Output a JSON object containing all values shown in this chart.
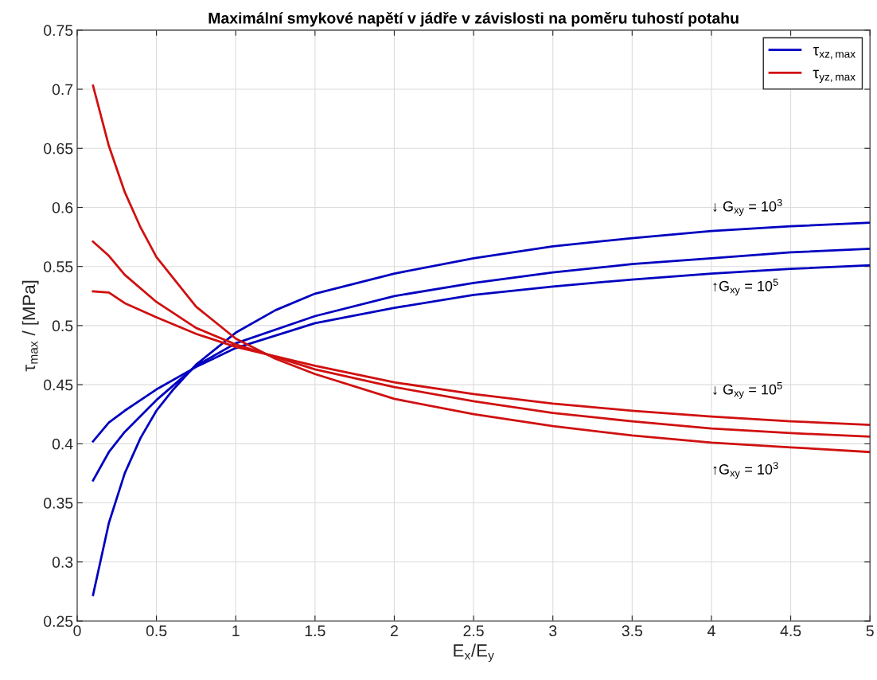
{
  "chart_data": {
    "type": "line",
    "title": "Maximální smykové napětí v jádře v závislosti na poměru tuhostí potahu",
    "xlabel": "E$_{x}$/E$_{y}$",
    "ylabel": "τ$_{max}$ / [MPa]",
    "xlim": [
      0,
      5
    ],
    "xticks": [
      0,
      0.5,
      1,
      1.5,
      2,
      2.5,
      3,
      3.5,
      4,
      4.5,
      5
    ],
    "ylim": [
      0.25,
      0.75
    ],
    "yticks": [
      0.25,
      0.3,
      0.35,
      0.4,
      0.45,
      0.5,
      0.55,
      0.6,
      0.65,
      0.7,
      0.75
    ],
    "grid": true,
    "legend": "top right",
    "line_style": "solid",
    "marker": "none",
    "series": [
      {
        "name": "τ$_{xz,max}$",
        "color": "#0000c0",
        "x": [
          0.1,
          0.2,
          0.3,
          0.4,
          0.5,
          0.6,
          0.75,
          1.0,
          1.25,
          1.5,
          2.0,
          2.5,
          3.0,
          3.5,
          4.0,
          4.5,
          5.0
        ],
        "values": [
          0.272,
          0.333,
          0.375,
          0.405,
          0.428,
          0.445,
          0.467,
          0.494,
          0.513,
          0.527,
          0.544,
          0.557,
          0.567,
          0.574,
          0.58,
          0.584,
          0.587
        ]
      },
      {
        "color": "#0000c0",
        "x": [
          0.1,
          0.2,
          0.3,
          0.5,
          0.75,
          1.0,
          1.5,
          2.0,
          2.5,
          3.0,
          3.5,
          4.0,
          4.5,
          5.0
        ],
        "values": [
          0.369,
          0.393,
          0.41,
          0.437,
          0.466,
          0.485,
          0.508,
          0.525,
          0.536,
          0.545,
          0.552,
          0.557,
          0.562,
          0.565
        ]
      },
      {
        "color": "#0000c0",
        "x": [
          0.1,
          0.2,
          0.3,
          0.5,
          0.75,
          1.0,
          1.5,
          2.0,
          2.5,
          3.0,
          3.5,
          4.0,
          4.5,
          5.0
        ],
        "values": [
          0.402,
          0.418,
          0.428,
          0.446,
          0.465,
          0.481,
          0.502,
          0.515,
          0.526,
          0.533,
          0.539,
          0.544,
          0.548,
          0.551
        ]
      },
      {
        "name": "τ$_{yz,max}$",
        "color": "#d01010",
        "x": [
          0.1,
          0.2,
          0.3,
          0.4,
          0.5,
          0.75,
          1.0,
          1.25,
          1.5,
          2.0,
          2.5,
          3.0,
          3.5,
          4.0,
          4.5,
          5.0
        ],
        "values": [
          0.703,
          0.652,
          0.613,
          0.583,
          0.558,
          0.516,
          0.489,
          0.472,
          0.459,
          0.438,
          0.425,
          0.415,
          0.407,
          0.401,
          0.397,
          0.393
        ]
      },
      {
        "color": "#d01010",
        "x": [
          0.1,
          0.2,
          0.3,
          0.5,
          0.75,
          1.0,
          1.5,
          2.0,
          2.5,
          3.0,
          3.5,
          4.0,
          4.5,
          5.0
        ],
        "values": [
          0.571,
          0.559,
          0.543,
          0.52,
          0.498,
          0.484,
          0.463,
          0.448,
          0.436,
          0.426,
          0.419,
          0.413,
          0.409,
          0.406
        ]
      },
      {
        "color": "#d01010",
        "x": [
          0.1,
          0.2,
          0.3,
          0.5,
          0.75,
          1.0,
          1.5,
          2.0,
          2.5,
          3.0,
          3.5,
          4.0,
          4.5,
          5.0
        ],
        "values": [
          0.529,
          0.528,
          0.519,
          0.507,
          0.493,
          0.482,
          0.466,
          0.452,
          0.442,
          0.434,
          0.428,
          0.423,
          0.419,
          0.416
        ]
      }
    ],
    "annotations": [
      "↓ G$_{xy}$ = 10$^{3}$",
      "↑G$_{xy}$ = 10$^{5}$",
      "↓ G$_{xy}$ = 10$^{5}$",
      "↑G$_{xy}$ = 10$^{3}$"
    ]
  }
}
